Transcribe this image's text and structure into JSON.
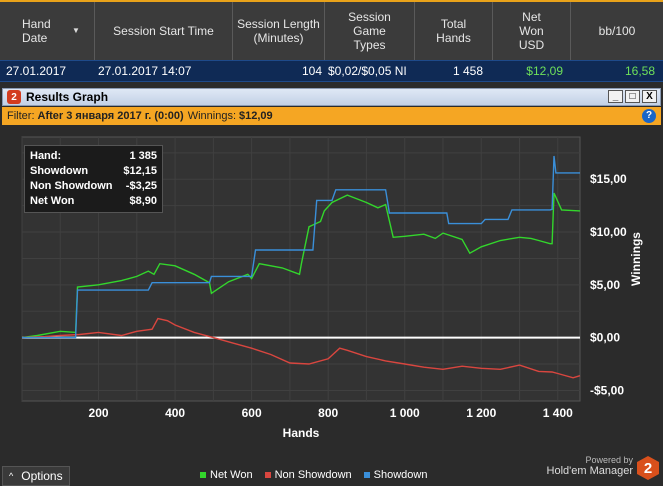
{
  "table": {
    "headers": [
      {
        "label": "Hand Date"
      },
      {
        "label": "Session Start Time"
      },
      {
        "label": "Session Length (Minutes)"
      },
      {
        "label": "Session Game Types"
      },
      {
        "label": "Total Hands"
      },
      {
        "label": "Net Won USD"
      },
      {
        "label": "bb/100"
      }
    ],
    "row": {
      "date": "27.01.2017",
      "start": "27.01.2017 14:07",
      "length": "104",
      "types": "$0,02/$0,05 NI",
      "hands": "1 458",
      "net": "$12,09",
      "bb": "16,58"
    }
  },
  "window": {
    "title": "Results Graph",
    "badge": "2",
    "buttons": [
      "_",
      "□",
      "X"
    ]
  },
  "filter": {
    "prefix": "Filter:",
    "value": "After 3 января 2017 г. (0:00)",
    "winnings_label": "Winnings:",
    "winnings_value": "$12,09",
    "help": "?"
  },
  "tooltip": {
    "rows": [
      {
        "label": "Hand:",
        "value": "1 385"
      },
      {
        "label": "Showdown",
        "value": "$12,15"
      },
      {
        "label": "Non Showdown",
        "value": "-$3,25"
      },
      {
        "label": "Net Won",
        "value": "$8,90"
      }
    ]
  },
  "chart_data": {
    "type": "line",
    "xlabel": "Hands",
    "ylabel": "Winnings",
    "xlim": [
      0,
      1458
    ],
    "ylim": [
      -6,
      19
    ],
    "x_ticks": [
      {
        "v": 200,
        "label": "200"
      },
      {
        "v": 400,
        "label": "400"
      },
      {
        "v": 600,
        "label": "600"
      },
      {
        "v": 800,
        "label": "800"
      },
      {
        "v": 1000,
        "label": "1 000"
      },
      {
        "v": 1200,
        "label": "1 200"
      },
      {
        "v": 1400,
        "label": "1 400"
      }
    ],
    "y_ticks": [
      {
        "v": 15,
        "label": "$15,00"
      },
      {
        "v": 10,
        "label": "$10,00"
      },
      {
        "v": 5,
        "label": "$5,00"
      },
      {
        "v": 0,
        "label": "$0,00"
      },
      {
        "v": -5,
        "label": "-$5,00"
      }
    ],
    "grid": true,
    "series": [
      {
        "name": "Net Won",
        "color": "#33d62c",
        "x": [
          0,
          40,
          100,
          140,
          145,
          200,
          260,
          300,
          330,
          345,
          360,
          400,
          450,
          490,
          495,
          540,
          590,
          600,
          620,
          680,
          725,
          730,
          750,
          780,
          790,
          810,
          850,
          900,
          930,
          950,
          970,
          1000,
          1050,
          1080,
          1100,
          1150,
          1170,
          1200,
          1250,
          1300,
          1330,
          1350,
          1380,
          1385,
          1390,
          1410,
          1458
        ],
        "y": [
          0,
          0.2,
          0.6,
          0.5,
          4.8,
          5.0,
          5.4,
          5.8,
          6.3,
          6.0,
          7.0,
          6.8,
          6.0,
          5.2,
          4.2,
          5.3,
          6.0,
          5.6,
          7.0,
          6.6,
          6.0,
          7.0,
          10.5,
          11.0,
          12.0,
          12.8,
          13.5,
          12.8,
          12.3,
          12.6,
          9.5,
          9.6,
          9.8,
          9.4,
          9.9,
          9.3,
          8.0,
          8.6,
          9.2,
          9.5,
          9.4,
          9.2,
          8.9,
          8.9,
          13.7,
          12.1,
          12.0
        ]
      },
      {
        "name": "Non Showdown",
        "color": "#d9463f",
        "x": [
          0,
          60,
          100,
          150,
          200,
          260,
          300,
          340,
          355,
          380,
          400,
          450,
          500,
          550,
          600,
          650,
          700,
          750,
          800,
          830,
          850,
          900,
          950,
          1000,
          1050,
          1100,
          1150,
          1200,
          1250,
          1300,
          1350,
          1385,
          1400,
          1440,
          1458
        ],
        "y": [
          0,
          0.1,
          0.2,
          0.3,
          0.5,
          0.2,
          0.6,
          0.8,
          1.8,
          1.6,
          1.2,
          0.5,
          0.0,
          -0.5,
          -1.0,
          -1.6,
          -2.4,
          -2.5,
          -2.0,
          -1.0,
          -1.2,
          -1.8,
          -2.2,
          -2.5,
          -2.8,
          -3.0,
          -2.7,
          -2.9,
          -3.0,
          -2.6,
          -3.2,
          -3.25,
          -3.4,
          -3.8,
          -3.6
        ]
      },
      {
        "name": "Showdown",
        "color": "#3a8fd9",
        "x": [
          0,
          140,
          145,
          330,
          340,
          490,
          495,
          600,
          610,
          710,
          720,
          760,
          770,
          810,
          820,
          950,
          960,
          1110,
          1115,
          1200,
          1210,
          1270,
          1280,
          1380,
          1385,
          1390,
          1395,
          1458
        ],
        "y": [
          0,
          0,
          4.5,
          4.5,
          5.2,
          5.2,
          5.8,
          5.8,
          8.3,
          8.3,
          8.3,
          8.3,
          13.0,
          13.0,
          14.0,
          14.0,
          11.8,
          11.8,
          10.8,
          10.8,
          11.2,
          11.2,
          12.1,
          12.1,
          12.15,
          17.2,
          15.6,
          15.6
        ]
      }
    ]
  },
  "footer": {
    "options_label": "Options",
    "options_caret": "^",
    "legend": [
      {
        "label": "Net Won",
        "color": "#33d62c"
      },
      {
        "label": "Non Showdown",
        "color": "#d9463f"
      },
      {
        "label": "Showdown",
        "color": "#3a8fd9"
      }
    ],
    "powered_by": "Powered by",
    "brand_name": "Hold'em Manager",
    "brand_badge": "2"
  }
}
